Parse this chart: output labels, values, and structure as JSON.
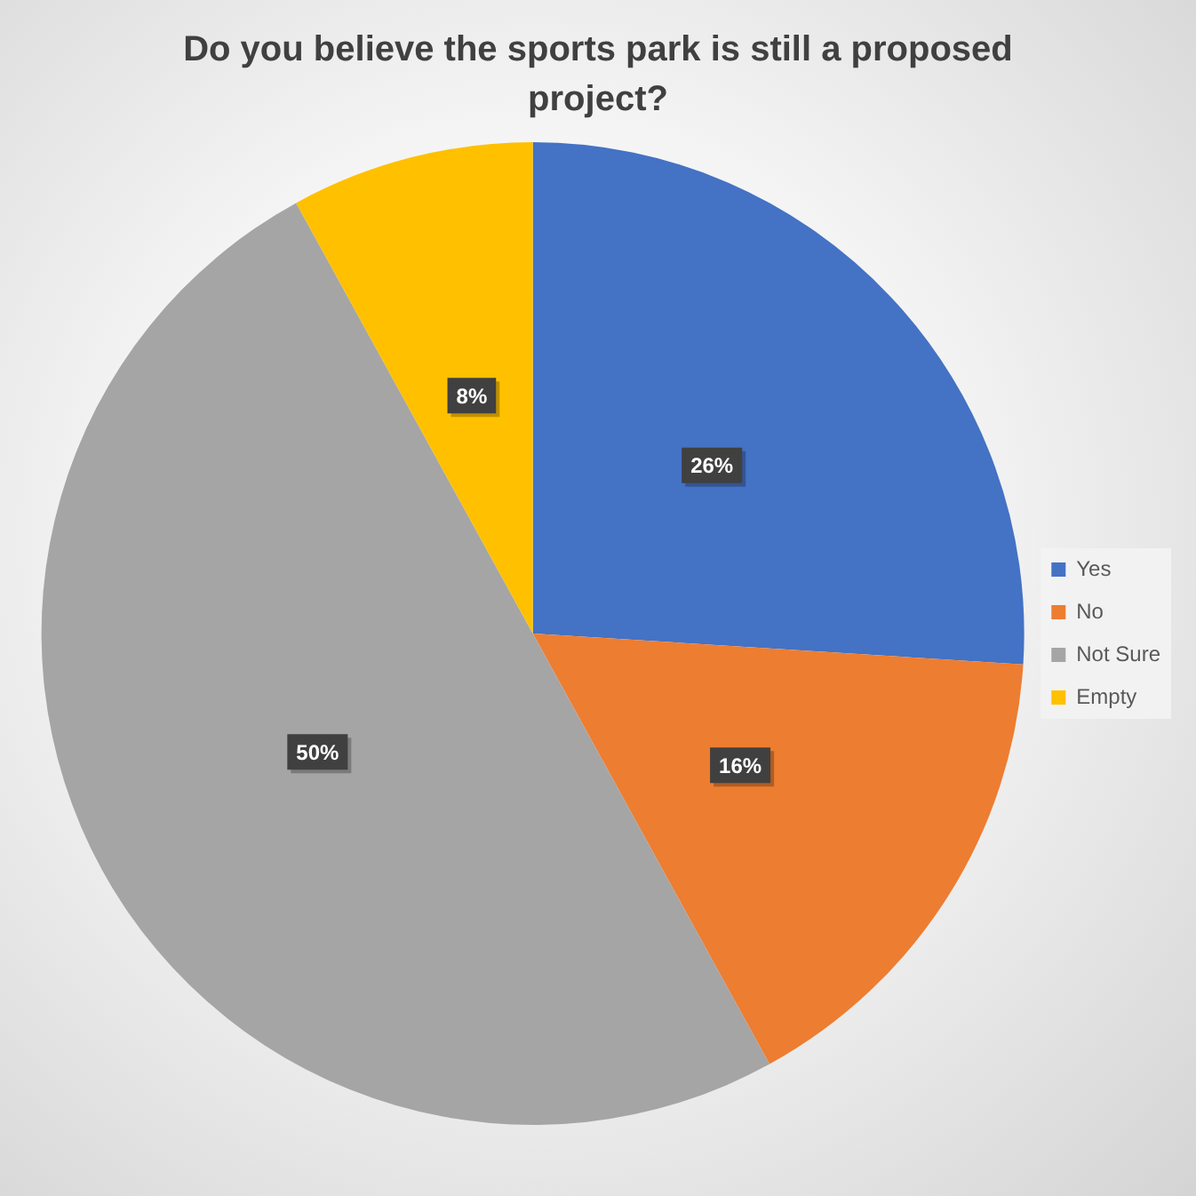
{
  "chart_data": {
    "type": "pie",
    "title": "Do you believe the sports park is still a proposed project?",
    "categories": [
      "Yes",
      "No",
      "Not Sure",
      "Empty"
    ],
    "values": [
      26,
      16,
      50,
      8
    ],
    "colors": [
      "#4472c4",
      "#ed7d31",
      "#a5a5a5",
      "#ffc000"
    ],
    "value_labels": [
      "26%",
      "16%",
      "50%",
      "8%"
    ],
    "legend": "right"
  }
}
